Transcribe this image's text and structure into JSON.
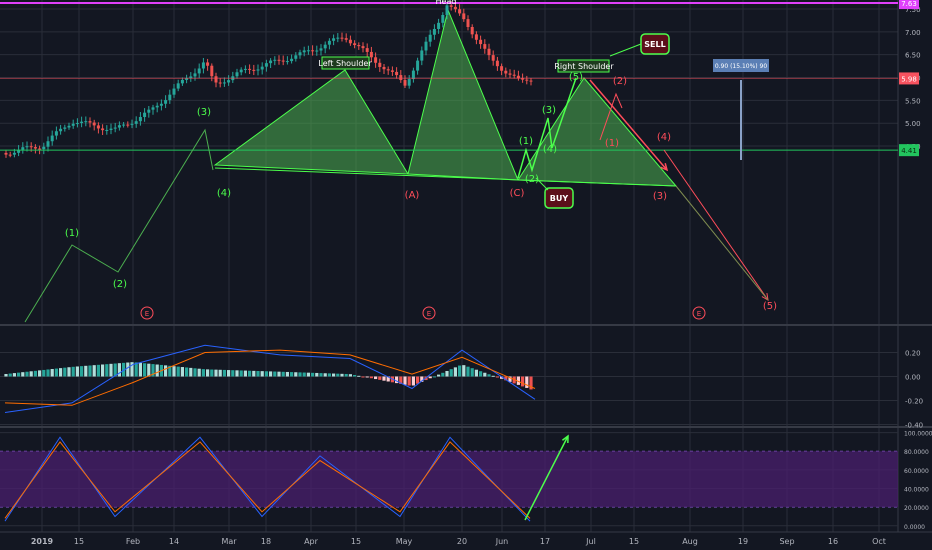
{
  "colors": {
    "background": "#131722",
    "grid": "#2a2e39",
    "up": "#26a69a",
    "down": "#ef5350",
    "pattern_fill": "#4caf50",
    "wave_green": "#4cff4c",
    "wave_red": "#ff4d5a",
    "resistance": "#e040fb",
    "support": "#22c55e",
    "macd_line": "#2962ff",
    "signal_line": "#ff6d00",
    "stoch_band": "#4a1f6e",
    "axis_text": "#b2b5be",
    "price_tag_red": "#f7525f",
    "measure_box": "#5b7fb5"
  },
  "chart_data": [
    {
      "type": "candlestick",
      "panel": "price",
      "x_tick_labels": [
        "2019",
        "15",
        "Feb",
        "14",
        "Mar",
        "18",
        "Apr",
        "15",
        "May",
        "20",
        "Jun",
        "17",
        "Jul",
        "15",
        "Aug",
        "19",
        "Sep",
        "16",
        "Oct"
      ],
      "y_tick_labels": [
        "7.50",
        "7.00",
        "6.50",
        "6.00",
        "5.50",
        "5.00",
        "4.50"
      ],
      "ylim": [
        4.22,
        7.74
      ],
      "x": [
        "2019-01-01",
        "2019-01-10",
        "2019-01-20",
        "2019-02-01",
        "2019-02-10",
        "2019-02-20",
        "2019-03-01",
        "2019-03-10",
        "2019-03-20",
        "2019-04-01",
        "2019-04-10",
        "2019-04-20",
        "2019-05-01",
        "2019-05-10",
        "2019-05-20",
        "2019-06-01",
        "2019-06-10"
      ],
      "close": [
        4.45,
        5.0,
        4.85,
        5.15,
        5.75,
        6.3,
        5.9,
        6.2,
        6.4,
        6.6,
        6.85,
        6.4,
        5.9,
        7.3,
        7.2,
        6.2,
        6.0
      ],
      "resistance": 7.63,
      "support": 4.41,
      "current_price": 5.98,
      "price_labels": [
        "7.63",
        "5.98",
        "4.41"
      ],
      "measure_label": "0.90 (15.10%) 90",
      "pattern_labels": [
        "Head",
        "Left Shoulder",
        "Right Shoulder"
      ],
      "signals": [
        "SELL",
        "BUY"
      ],
      "wave_labels_green": [
        "(1)",
        "(2)",
        "(3)",
        "(4)",
        "(1)",
        "(2)",
        "(3)",
        "(4)",
        "(5)"
      ],
      "wave_labels_red": [
        "(A)",
        "(C)",
        "(1)",
        "(2)",
        "(3)",
        "(4)",
        "(5)"
      ],
      "event_markers": [
        "E",
        "E",
        "E"
      ]
    },
    {
      "type": "bar",
      "panel": "macd",
      "y_tick_labels": [
        "0.20",
        "0.00",
        "-0.20",
        "-0.40"
      ],
      "ylim": [
        -0.42,
        0.32
      ],
      "x": [
        "2019-01-01",
        "2019-01-20",
        "2019-02-10",
        "2019-03-01",
        "2019-03-20",
        "2019-04-10",
        "2019-05-01",
        "2019-05-20",
        "2019-06-10"
      ],
      "series": [
        {
          "name": "",
          "values": [
            -0.3,
            -0.22,
            0.1,
            0.26,
            0.18,
            0.15,
            -0.1,
            0.22,
            -0.19
          ]
        },
        {
          "name": "",
          "values": [
            -0.22,
            -0.24,
            -0.05,
            0.2,
            0.22,
            0.18,
            0.02,
            0.16,
            -0.1
          ]
        }
      ],
      "histogram": [
        0.02,
        0.08,
        0.12,
        0.06,
        0.04,
        0.02,
        -0.08,
        0.1,
        -0.12
      ]
    },
    {
      "type": "line",
      "panel": "stochastic",
      "y_tick_labels": [
        "100.0000",
        "80.0000",
        "60.0000",
        "40.0000",
        "20.0000",
        "0.0000"
      ],
      "ylim": [
        -3,
        103
      ],
      "band": [
        20,
        80
      ],
      "x": [
        "2019-01-01",
        "2019-01-20",
        "2019-02-10",
        "2019-03-01",
        "2019-03-20",
        "2019-04-10",
        "2019-05-01",
        "2019-05-20",
        "2019-06-10"
      ],
      "series": [
        {
          "name": "",
          "values": [
            5,
            95,
            10,
            95,
            10,
            75,
            10,
            95,
            5
          ]
        },
        {
          "name": "",
          "values": [
            8,
            90,
            15,
            90,
            15,
            70,
            15,
            90,
            8
          ]
        }
      ]
    }
  ]
}
